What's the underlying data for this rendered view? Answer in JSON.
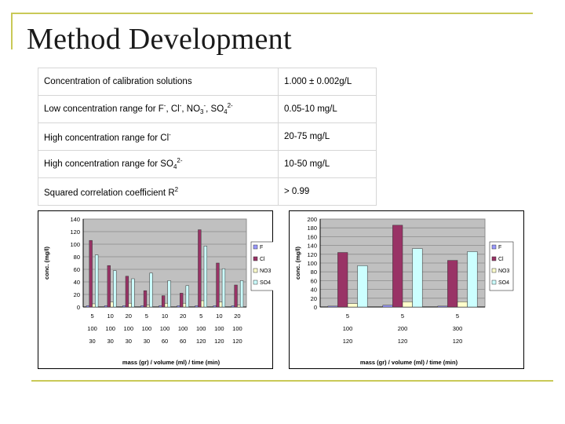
{
  "slide": {
    "title": "Method Development"
  },
  "table": {
    "rows": [
      {
        "label": "Concentration of calibration solutions",
        "value": "1.000 ± 0.002g/L"
      },
      {
        "label_parts": [
          "Low concentration range for F",
          "-",
          ", Cl",
          "-",
          ", NO",
          "3",
          "-",
          ", SO",
          "4",
          "2-"
        ],
        "value": "0.05-10 mg/L"
      },
      {
        "label_parts": [
          "High concentration range for Cl",
          "-"
        ],
        "value": "20-75 mg/L"
      },
      {
        "label_parts": [
          "High concentration range for SO",
          "4",
          "2-"
        ],
        "value": "10-50 mg/L"
      },
      {
        "label_parts": [
          "Squared correlation coefficient R",
          "2"
        ],
        "value": "> 0.99"
      }
    ]
  },
  "chart_data": [
    {
      "type": "bar",
      "ylabel": "conc. (mg/l)",
      "xlabel": "mass (gr) / volume (ml) / time (min)",
      "ylim": [
        0,
        140
      ],
      "yticks": [
        0,
        20,
        40,
        60,
        80,
        100,
        120,
        140
      ],
      "category_rows": [
        [
          "5",
          "10",
          "20",
          "5",
          "10",
          "20",
          "5",
          "10",
          "20"
        ],
        [
          "100",
          "100",
          "100",
          "100",
          "100",
          "100",
          "100",
          "100",
          "100"
        ],
        [
          "30",
          "30",
          "30",
          "30",
          "60",
          "60",
          "120",
          "120",
          "120"
        ]
      ],
      "series": [
        {
          "name": "F",
          "color": "#9999ff",
          "values": [
            2,
            2,
            2,
            2,
            2,
            2,
            2,
            2,
            2
          ]
        },
        {
          "name": "Cl",
          "color": "#993366",
          "values": [
            106,
            66,
            49,
            26,
            18,
            22,
            123,
            70,
            35
          ]
        },
        {
          "name": "NO3",
          "color": "#ffffcc",
          "values": [
            5,
            8,
            6,
            3,
            6,
            6,
            10,
            8,
            3
          ]
        },
        {
          "name": "SO4",
          "color": "#ccffff",
          "values": [
            83,
            58,
            45,
            54,
            42,
            34,
            97,
            61,
            42
          ]
        }
      ],
      "colors": {
        "grid": "#8c8c8c",
        "plot_bg": "#c0c0c0",
        "axis": "#000000"
      }
    },
    {
      "type": "bar",
      "ylabel": "conc. (mg/l)",
      "xlabel": "mass (gr) / volume (ml) / time (min)",
      "ylim": [
        0,
        200
      ],
      "yticks": [
        0,
        20,
        40,
        60,
        80,
        100,
        120,
        140,
        160,
        180,
        200
      ],
      "category_rows": [
        [
          "5",
          "5",
          "5"
        ],
        [
          "100",
          "200",
          "300"
        ],
        [
          "120",
          "120",
          "120"
        ]
      ],
      "series": [
        {
          "name": "F",
          "color": "#9999ff",
          "values": [
            2,
            4,
            2
          ]
        },
        {
          "name": "Cl",
          "color": "#993366",
          "values": [
            124,
            186,
            106
          ]
        },
        {
          "name": "NO3",
          "color": "#ffffcc",
          "values": [
            8,
            12,
            12
          ]
        },
        {
          "name": "SO4",
          "color": "#ccffff",
          "values": [
            94,
            133,
            126
          ]
        }
      ],
      "colors": {
        "grid": "#8c8c8c",
        "plot_bg": "#c0c0c0",
        "axis": "#000000"
      }
    }
  ]
}
